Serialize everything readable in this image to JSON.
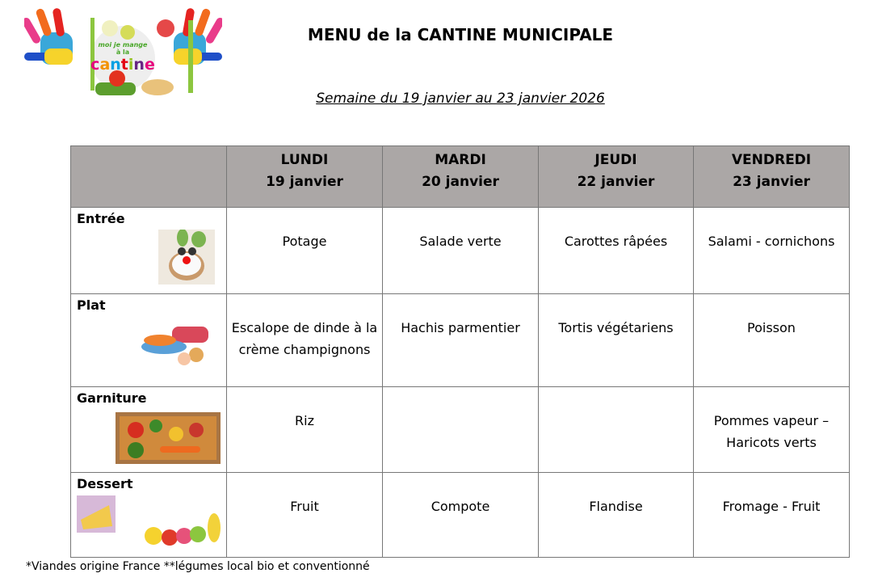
{
  "logo": {
    "text": "moi je mange à la cantine"
  },
  "title": "MENU de la CANTINE MUNICIPALE",
  "subtitle": "Semaine du 19 janvier au 23 janvier 2026",
  "days": [
    {
      "name": "LUNDI",
      "date": "19 janvier"
    },
    {
      "name": "MARDI",
      "date": "20 janvier"
    },
    {
      "name": "JEUDI",
      "date": "22 janvier"
    },
    {
      "name": "VENDREDI",
      "date": "23 janvier"
    }
  ],
  "rows": [
    {
      "label": "Entrée",
      "icon": "rabbit-toast-image",
      "cells": [
        "Potage",
        "Salade verte",
        "Carottes râpées",
        "Salami - cornichons"
      ]
    },
    {
      "label": "Plat",
      "icon": "meat-fish-image",
      "cells": [
        "Escalope de dinde à la crème champignons",
        "Hachis parmentier",
        "Tortis végétariens",
        "Poisson"
      ]
    },
    {
      "label": "Garniture",
      "icon": "vegetable-crate-image",
      "cells": [
        "Riz",
        "",
        "",
        "Pommes vapeur – Haricots verts"
      ]
    },
    {
      "label": "Dessert",
      "icon": "cheese-fruit-image",
      "cells": [
        "Fruit",
        "Compote",
        "Flandise",
        "Fromage - Fruit"
      ]
    }
  ],
  "footnote": "*Viandes origine France **légumes local bio et conventionné"
}
